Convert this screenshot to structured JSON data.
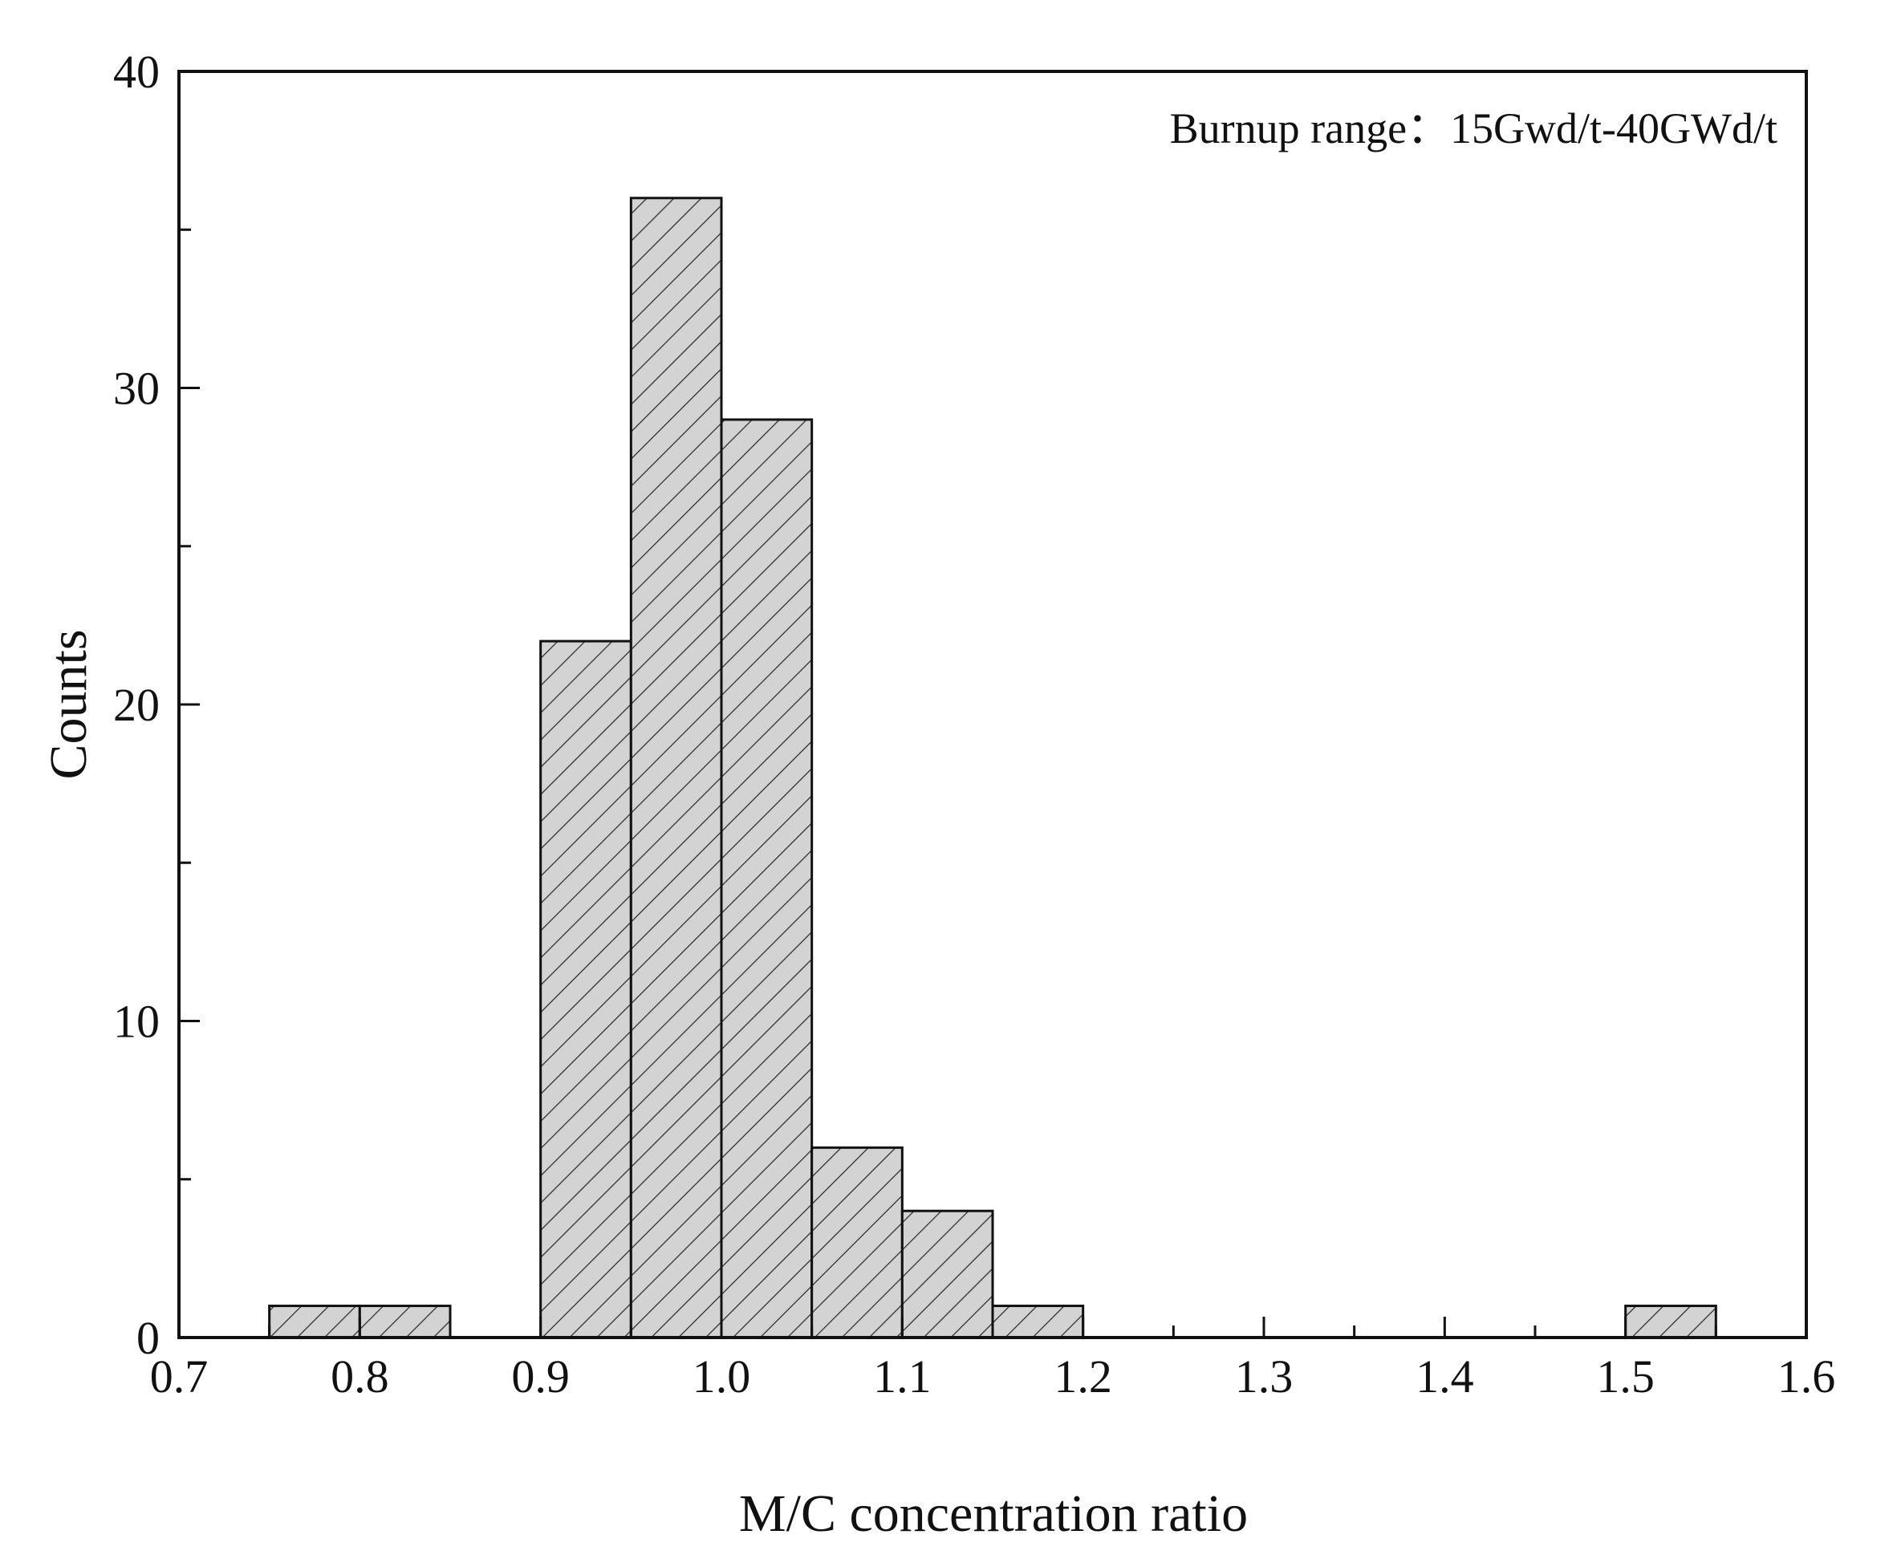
{
  "chart_data": {
    "type": "bar",
    "subtype": "histogram",
    "title": "",
    "annotation": "Burnup range：15Gwd/t-40GWd/t",
    "xlabel": "M/C concentration ratio",
    "ylabel": "Counts",
    "xlim": [
      0.7,
      1.6
    ],
    "ylim": [
      0,
      40
    ],
    "x_ticks": [
      "0.7",
      "0.8",
      "0.9",
      "1.0",
      "1.1",
      "1.2",
      "1.3",
      "1.4",
      "1.5",
      "1.6"
    ],
    "y_ticks": [
      "0",
      "10",
      "20",
      "30",
      "40"
    ],
    "bin_width": 0.05,
    "bins": [
      {
        "start": 0.75,
        "end": 0.8,
        "count": 1
      },
      {
        "start": 0.8,
        "end": 0.85,
        "count": 1
      },
      {
        "start": 0.9,
        "end": 0.95,
        "count": 22
      },
      {
        "start": 0.95,
        "end": 1.0,
        "count": 36
      },
      {
        "start": 1.0,
        "end": 1.05,
        "count": 29
      },
      {
        "start": 1.05,
        "end": 1.1,
        "count": 6
      },
      {
        "start": 1.1,
        "end": 1.15,
        "count": 4
      },
      {
        "start": 1.15,
        "end": 1.2,
        "count": 1
      },
      {
        "start": 1.5,
        "end": 1.55,
        "count": 1
      }
    ],
    "bar_fill": "#d3d3d3",
    "bar_hatch": "diagonal",
    "grid": false
  }
}
